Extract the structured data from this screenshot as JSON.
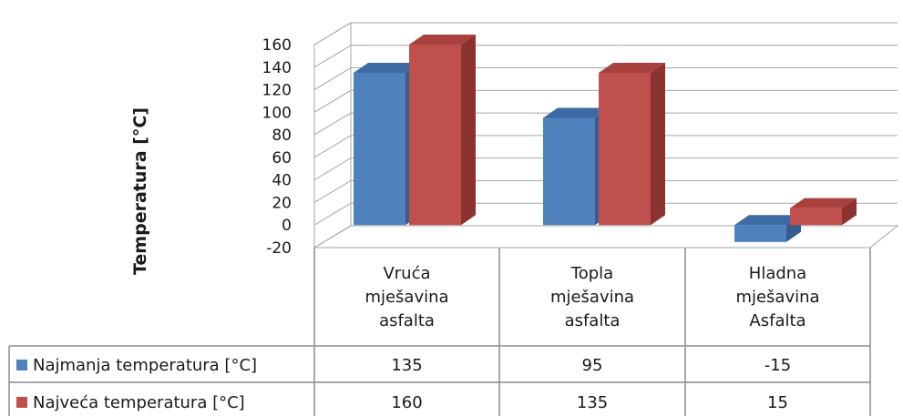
{
  "chart_data": {
    "type": "bar",
    "ylabel": "Temperatura [°C]",
    "ylim": [
      -20,
      160
    ],
    "yticks": [
      "160",
      "140",
      "120",
      "100",
      "80",
      "60",
      "40",
      "20",
      "0",
      "-20"
    ],
    "categories": [
      [
        "Vruća",
        "mješavina",
        "asfalta"
      ],
      [
        "Topla",
        "mješavina",
        "asfalta"
      ],
      [
        "Hladna",
        "mješavina",
        "Asfalta"
      ]
    ],
    "series": [
      {
        "name": "Najmanja temperatura [°C]",
        "values": [
          135,
          95,
          -15
        ],
        "labels": [
          "135",
          "95",
          "-15"
        ]
      },
      {
        "name": "Najveća temperatura [°C]",
        "values": [
          160,
          135,
          15
        ],
        "labels": [
          "160",
          "135",
          "15"
        ]
      }
    ],
    "colors": {
      "s0_front": "#4f81bd",
      "s0_top": "#3c6aa3",
      "s0_side": "#385d8a",
      "s1_front": "#c0504d",
      "s1_top": "#a8403d",
      "s1_side": "#8c3331",
      "grid": "#a6a6a6",
      "table": "#8c8c8c"
    },
    "grid": true,
    "legend": "data-table"
  }
}
